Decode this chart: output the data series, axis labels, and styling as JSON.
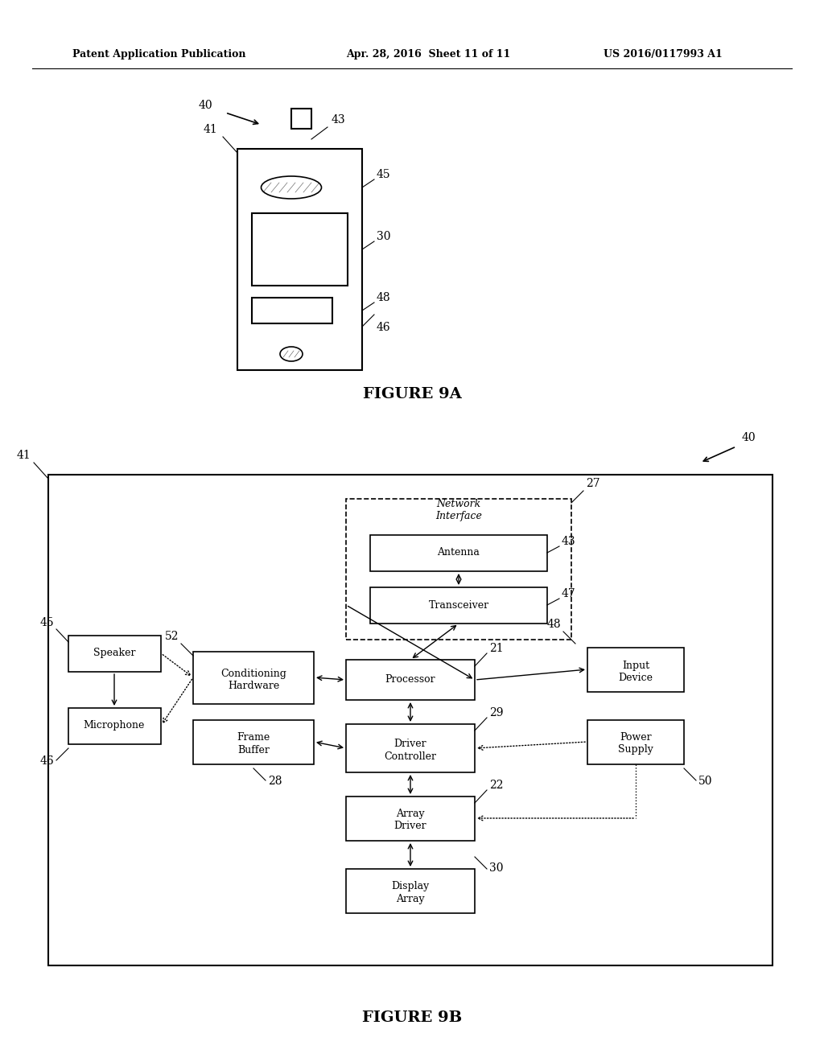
{
  "bg_color": "#ffffff",
  "header_left": "Patent Application Publication",
  "header_center": "Apr. 28, 2016  Sheet 11 of 11",
  "header_right": "US 2016/0117993 A1",
  "fig9a_label": "FIGURE 9A",
  "fig9b_label": "FIGURE 9B",
  "line_color": "#000000",
  "box_color": "#000000",
  "text_color": "#000000"
}
